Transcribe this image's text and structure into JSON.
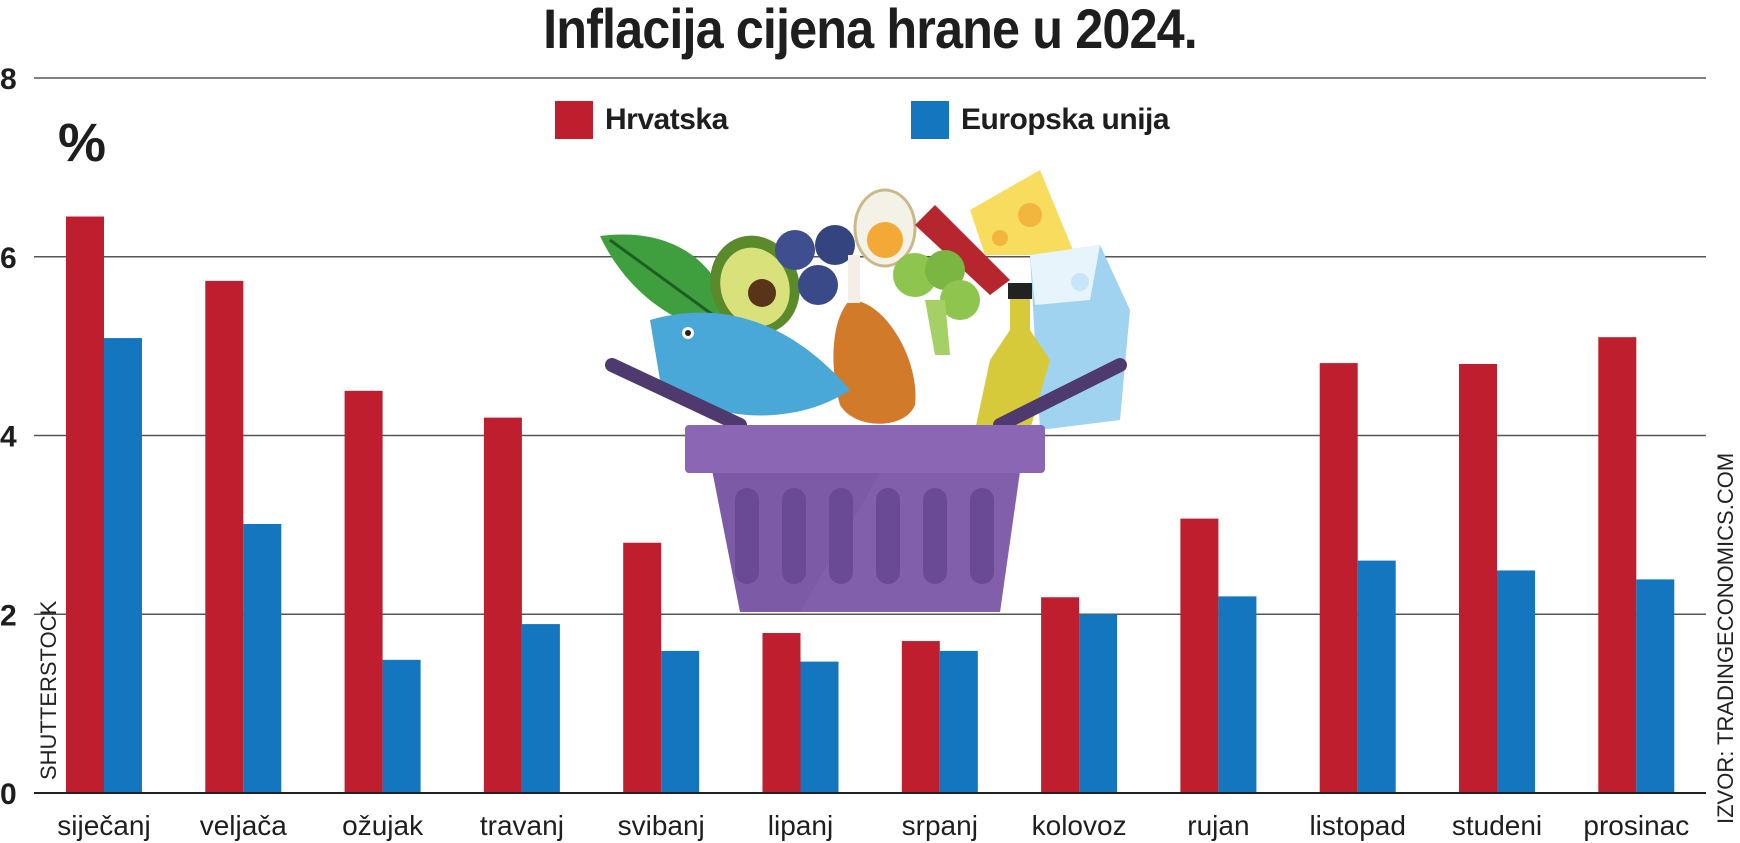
{
  "chart_data": {
    "type": "bar",
    "title": "Inflacija cijena hrane u 2024.",
    "ylabel": "%",
    "ylim": [
      0,
      8
    ],
    "yticks": [
      "0",
      "2",
      "4",
      "6",
      "8"
    ],
    "categories": [
      "siječanj",
      "veljača",
      "ožujak",
      "travanj",
      "svibanj",
      "lipanj",
      "srpanj",
      "kolovoz",
      "rujan",
      "listopad",
      "studeni",
      "prosinac"
    ],
    "series": [
      {
        "name": "Hrvatska",
        "color": "#be1e2d",
        "values": [
          6.45,
          5.73,
          4.5,
          4.2,
          2.8,
          1.79,
          1.7,
          2.19,
          3.07,
          4.81,
          4.8,
          5.1
        ]
      },
      {
        "name": "Europska unija",
        "color": "#1476be",
        "values": [
          5.09,
          3.01,
          1.49,
          1.89,
          1.59,
          1.47,
          1.59,
          2.0,
          2.2,
          2.6,
          2.49,
          2.39
        ]
      }
    ],
    "legend_position": "top-center",
    "grid": true
  },
  "credits": {
    "left": "SHUTTERSTOCK",
    "right": "IZVOR: TRADINGECONOMICS.COM"
  },
  "illustration": {
    "subject": "basket-with-groceries-icon"
  }
}
